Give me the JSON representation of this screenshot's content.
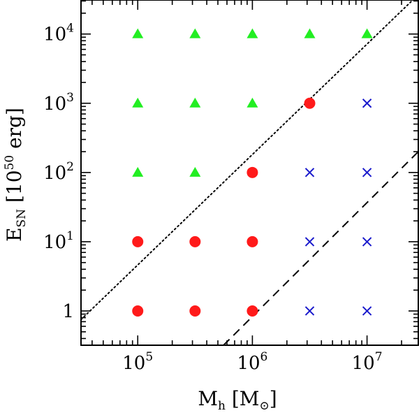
{
  "chart_data": {
    "type": "scatter",
    "xlabel": {
      "main": "M",
      "sub": "h",
      "units_open": " [M",
      "units_sub": "⊙",
      "units_close": "]"
    },
    "ylabel": {
      "main": "E",
      "sub": "SN",
      "units_open": " [10",
      "units_sup": "50",
      "units_close": " erg]"
    },
    "x_scale": "log",
    "y_scale": "log",
    "xlim": [
      32000,
      28000000
    ],
    "ylim": [
      0.32,
      31000
    ],
    "x_ticks": [
      {
        "value": 100000,
        "base": "10",
        "exp": "5"
      },
      {
        "value": 1000000,
        "base": "10",
        "exp": "6"
      },
      {
        "value": 10000000,
        "base": "10",
        "exp": "7"
      }
    ],
    "y_ticks": [
      {
        "value": 1,
        "base": "1",
        "exp": ""
      },
      {
        "value": 10,
        "base": "10",
        "exp": "1"
      },
      {
        "value": 100,
        "base": "10",
        "exp": "2"
      },
      {
        "value": 1000,
        "base": "10",
        "exp": "3"
      },
      {
        "value": 10000,
        "base": "10",
        "exp": "4"
      }
    ],
    "series": [
      {
        "marker": "triangle",
        "color": "#22ee22",
        "points": [
          [
            100000,
            10000
          ],
          [
            316228,
            10000
          ],
          [
            1000000,
            10000
          ],
          [
            3162278,
            10000
          ],
          [
            10000000,
            10000
          ],
          [
            100000,
            1000
          ],
          [
            316228,
            1000
          ],
          [
            1000000,
            1000
          ],
          [
            100000,
            100
          ],
          [
            316228,
            100
          ]
        ]
      },
      {
        "marker": "circle",
        "color": "#ff1a1a",
        "points": [
          [
            3162278,
            1000
          ],
          [
            1000000,
            100
          ],
          [
            100000,
            10
          ],
          [
            316228,
            10
          ],
          [
            1000000,
            10
          ],
          [
            100000,
            1
          ],
          [
            316228,
            1
          ],
          [
            1000000,
            1
          ]
        ]
      },
      {
        "marker": "cross",
        "color": "#1a1acc",
        "points": [
          [
            10000000,
            1000
          ],
          [
            3162278,
            100
          ],
          [
            10000000,
            100
          ],
          [
            3162278,
            10
          ],
          [
            10000000,
            10
          ],
          [
            3162278,
            1
          ],
          [
            10000000,
            1
          ]
        ]
      }
    ],
    "lines": [
      {
        "style": "dotted",
        "color": "#000000",
        "points": [
          [
            32000,
            0.75
          ],
          [
            28000000,
            37000
          ]
        ]
      },
      {
        "style": "dashed",
        "color": "#000000",
        "points": [
          [
            560000,
            0.32
          ],
          [
            28000000,
            200
          ]
        ]
      }
    ]
  }
}
